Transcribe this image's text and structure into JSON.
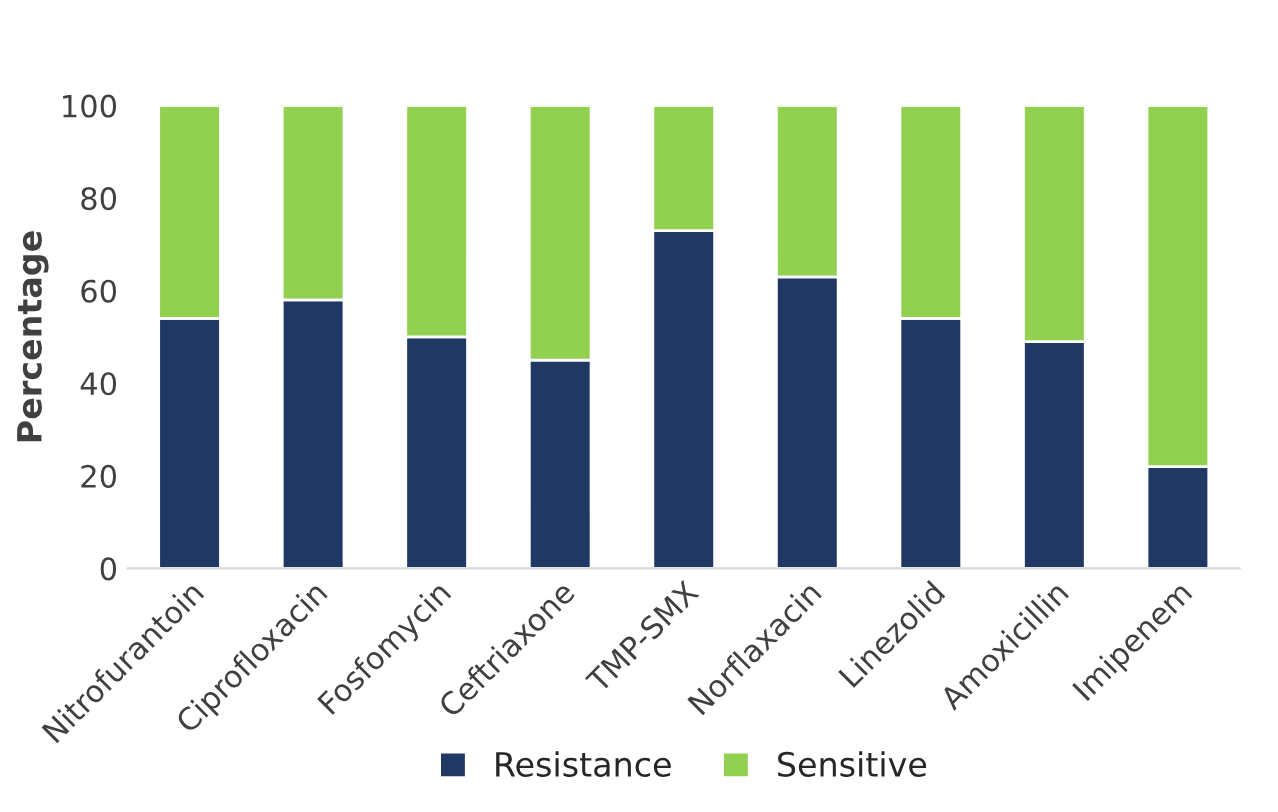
{
  "chart_data": {
    "type": "bar",
    "ylabel": "Percentage",
    "categories": [
      "Nitrofurantoin",
      "Ciprofloxacin",
      "Fosfomycin",
      "Ceftriaxone",
      "TMP-SMX",
      "Norflaxacin",
      "Linezolid",
      "Amoxicillin",
      "Imipenem"
    ],
    "stacked": true,
    "series": [
      {
        "name": "Resistance",
        "color": "#1f3864",
        "values": [
          54,
          58,
          50,
          45,
          73,
          63,
          54,
          49,
          22
        ]
      },
      {
        "name": "Sensitive",
        "color": "#92d050",
        "values": [
          46,
          42,
          50,
          55,
          27,
          37,
          46,
          51,
          78
        ]
      }
    ],
    "ylim": [
      0,
      100
    ],
    "yticks": [
      0,
      20,
      40,
      60,
      80,
      100
    ],
    "grid": false,
    "legend": "bottom"
  }
}
